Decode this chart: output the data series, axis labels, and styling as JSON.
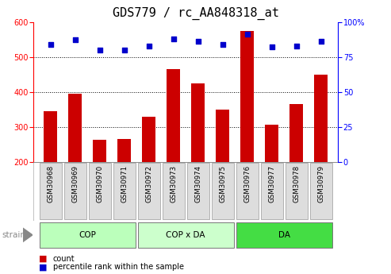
{
  "title": "GDS779 / rc_AA848318_at",
  "samples": [
    "GSM30968",
    "GSM30969",
    "GSM30970",
    "GSM30971",
    "GSM30972",
    "GSM30973",
    "GSM30974",
    "GSM30975",
    "GSM30976",
    "GSM30977",
    "GSM30978",
    "GSM30979"
  ],
  "counts": [
    345,
    395,
    262,
    266,
    328,
    465,
    425,
    350,
    575,
    305,
    365,
    450
  ],
  "percentiles": [
    84,
    87,
    80,
    80,
    83,
    88,
    86,
    84,
    91,
    82,
    83,
    86
  ],
  "groups": [
    {
      "label": "COP",
      "start": 0,
      "end": 3,
      "color": "#bbffbb"
    },
    {
      "label": "COP x DA",
      "start": 4,
      "end": 7,
      "color": "#ccffcc"
    },
    {
      "label": "DA",
      "start": 8,
      "end": 11,
      "color": "#44dd44"
    }
  ],
  "ylim_left": [
    200,
    600
  ],
  "ylim_right": [
    0,
    100
  ],
  "yticks_left": [
    200,
    300,
    400,
    500,
    600
  ],
  "yticks_right": [
    0,
    25,
    50,
    75,
    100
  ],
  "bar_color": "#cc0000",
  "dot_color": "#0000cc",
  "bg_color": "#ffffff",
  "tick_label_bg": "#dddddd",
  "title_fontsize": 11,
  "tick_fontsize": 7,
  "bar_width": 0.55
}
